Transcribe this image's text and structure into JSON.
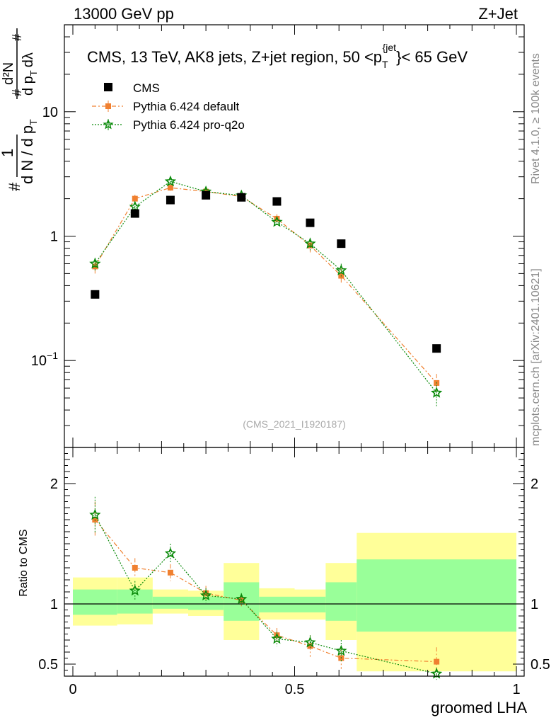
{
  "header": {
    "left": "13000 GeV pp",
    "right": "Z+Jet"
  },
  "side": {
    "rivet": "Rivet 4.1.0, ≥ 100k events",
    "mcplots": "mcplots.cern.ch [arXiv:2401.10621]"
  },
  "watermark": "(CMS_2021_I1920187)",
  "top_ylabel": {
    "line1_hash": "#",
    "frac_num": "1",
    "frac_den": "d N / d p",
    "frac_den_sub": "T",
    "frac2_hash_num": "#",
    "frac2_num": "d²N",
    "frac2_den": "d p",
    "frac2_den_sub": "T",
    "frac2_den_tail": "dλ",
    "hash_num2": "#"
  },
  "colors": {
    "cms": "#000000",
    "pythia_default": "#f08030",
    "pythia_proq2o": "#0a8a0a",
    "band_inner": "#99ff99",
    "band_outer": "#ffff99"
  },
  "chart_data": [
    {
      "type": "scatter",
      "id": "main",
      "title": "CMS, 13 TeV, AK8 jets, Z+jet region, 50 <p_T^{jet}< 65 GeV",
      "title_parts": {
        "pre": "CMS, 13 TeV, AK8 jets, Z+jet region, 50 <p",
        "sub": "T",
        "sup": "{jet",
        "post": "}< 65 GeV"
      },
      "xlabel": "groomed LHA",
      "ylabel": "1 / dN/dp_T  d²N / dp_T dλ",
      "xlim": [
        0,
        1
      ],
      "ylim": [
        0.02,
        50
      ],
      "yscale": "log",
      "yticks": [
        {
          "value": 0.1,
          "label_base": "10",
          "label_exp": "−1"
        },
        {
          "value": 1,
          "label_base": "1",
          "label_exp": ""
        },
        {
          "value": 10,
          "label_base": "10",
          "label_exp": ""
        }
      ],
      "legend": [
        "CMS",
        "Pythia 6.424 default",
        "Pythia 6.424 pro-q2o"
      ],
      "series": [
        {
          "name": "CMS",
          "x": [
            0.05,
            0.14,
            0.22,
            0.3,
            0.38,
            0.46,
            0.535,
            0.605,
            0.82
          ],
          "y": [
            0.34,
            1.52,
            1.95,
            2.13,
            2.05,
            1.9,
            1.28,
            0.87,
            0.125
          ]
        },
        {
          "name": "Pythia 6.424 default",
          "x": [
            0.05,
            0.14,
            0.22,
            0.3,
            0.38,
            0.46,
            0.535,
            0.605,
            0.82
          ],
          "y": [
            0.57,
            2.0,
            2.45,
            2.28,
            2.08,
            1.38,
            0.84,
            0.48,
            0.066
          ],
          "err": [
            0.07,
            0.15,
            0.15,
            0.12,
            0.1,
            0.12,
            0.1,
            0.07,
            0.012
          ]
        },
        {
          "name": "Pythia 6.424 pro-q2o",
          "x": [
            0.05,
            0.14,
            0.22,
            0.3,
            0.38,
            0.46,
            0.535,
            0.605,
            0.82
          ],
          "y": [
            0.6,
            1.72,
            2.75,
            2.28,
            2.12,
            1.3,
            0.87,
            0.53,
            0.055
          ],
          "err": [
            0.07,
            0.12,
            0.15,
            0.12,
            0.1,
            0.1,
            0.1,
            0.07,
            0.012
          ]
        }
      ]
    },
    {
      "type": "scatter",
      "id": "ratio",
      "xlabel": "groomed LHA",
      "ylabel": "Ratio to CMS",
      "xlim": [
        0,
        1
      ],
      "ylim": [
        0.4,
        2.3
      ],
      "xticks": [
        {
          "value": 0,
          "label": "0"
        },
        {
          "value": 0.5,
          "label": "0.5"
        },
        {
          "value": 1,
          "label": "1"
        }
      ],
      "yticks": [
        {
          "value": 0.5,
          "label": "0.5"
        },
        {
          "value": 1,
          "label": "1"
        },
        {
          "value": 2,
          "label": "2"
        }
      ],
      "bands": [
        {
          "x0": 0.0,
          "x1": 0.1,
          "inner": [
            0.91,
            1.12
          ],
          "outer": [
            0.82,
            1.22
          ]
        },
        {
          "x0": 0.1,
          "x1": 0.18,
          "inner": [
            0.92,
            1.12
          ],
          "outer": [
            0.83,
            1.22
          ]
        },
        {
          "x0": 0.18,
          "x1": 0.26,
          "inner": [
            0.96,
            1.06
          ],
          "outer": [
            0.92,
            1.12
          ]
        },
        {
          "x0": 0.26,
          "x1": 0.34,
          "inner": [
            0.95,
            1.06
          ],
          "outer": [
            0.9,
            1.11
          ]
        },
        {
          "x0": 0.34,
          "x1": 0.42,
          "inner": [
            0.86,
            1.18
          ],
          "outer": [
            0.7,
            1.34
          ]
        },
        {
          "x0": 0.42,
          "x1": 0.5,
          "inner": [
            0.93,
            1.06
          ],
          "outer": [
            0.87,
            1.13
          ]
        },
        {
          "x0": 0.5,
          "x1": 0.57,
          "inner": [
            0.93,
            1.06
          ],
          "outer": [
            0.87,
            1.12
          ]
        },
        {
          "x0": 0.57,
          "x1": 0.64,
          "inner": [
            0.86,
            1.18
          ],
          "outer": [
            0.7,
            1.34
          ]
        },
        {
          "x0": 0.64,
          "x1": 1.0,
          "inner": [
            0.77,
            1.37
          ],
          "outer": [
            0.44,
            1.59
          ]
        }
      ],
      "series": [
        {
          "name": "Pythia 6.424 default",
          "x": [
            0.05,
            0.14,
            0.22,
            0.3,
            0.38,
            0.46,
            0.535,
            0.605,
            0.82
          ],
          "y": [
            1.7,
            1.3,
            1.26,
            1.09,
            1.03,
            0.74,
            0.65,
            0.55,
            0.52
          ],
          "err": [
            0.15,
            0.08,
            0.07,
            0.06,
            0.05,
            0.06,
            0.09,
            0.09,
            0.12
          ]
        },
        {
          "name": "Pythia 6.424 pro-q2o",
          "x": [
            0.05,
            0.14,
            0.22,
            0.3,
            0.38,
            0.46,
            0.535,
            0.605,
            0.82
          ],
          "y": [
            1.74,
            1.11,
            1.42,
            1.07,
            1.04,
            0.71,
            0.68,
            0.61,
            0.42
          ],
          "err": [
            0.15,
            0.08,
            0.08,
            0.06,
            0.05,
            0.06,
            0.06,
            0.09,
            0.05
          ]
        }
      ]
    }
  ]
}
